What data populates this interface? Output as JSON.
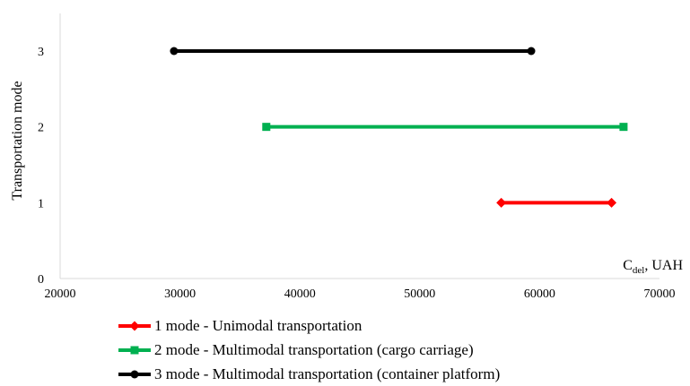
{
  "chart_data": {
    "type": "line",
    "xlabel": {
      "main": "C",
      "sub": "del",
      "suffix": ", UAH"
    },
    "ylabel": "Transportation mode",
    "xlim": [
      20000,
      70000
    ],
    "ylim": [
      0,
      3
    ],
    "x_ticks": [
      "20000",
      "30000",
      "40000",
      "50000",
      "60000",
      "70000"
    ],
    "y_ticks": [
      "0",
      "1",
      "2",
      "3"
    ],
    "grid": false,
    "legend_position": "bottom",
    "series": [
      {
        "name": "1 mode - Unimodal transportation",
        "color": "#ff0000",
        "marker": "diamond",
        "points": [
          {
            "x": 56800,
            "y": 1
          },
          {
            "x": 66000,
            "y": 1
          }
        ]
      },
      {
        "name": "2 mode - Multimodal transportation (cargo carriage)",
        "color": "#00b050",
        "marker": "square",
        "points": [
          {
            "x": 37200,
            "y": 2
          },
          {
            "x": 67000,
            "y": 2
          }
        ]
      },
      {
        "name": "3 mode - Multimodal transportation (container platform)",
        "color": "#000000",
        "marker": "circle",
        "points": [
          {
            "x": 29500,
            "y": 3
          },
          {
            "x": 59300,
            "y": 3
          }
        ]
      }
    ]
  }
}
